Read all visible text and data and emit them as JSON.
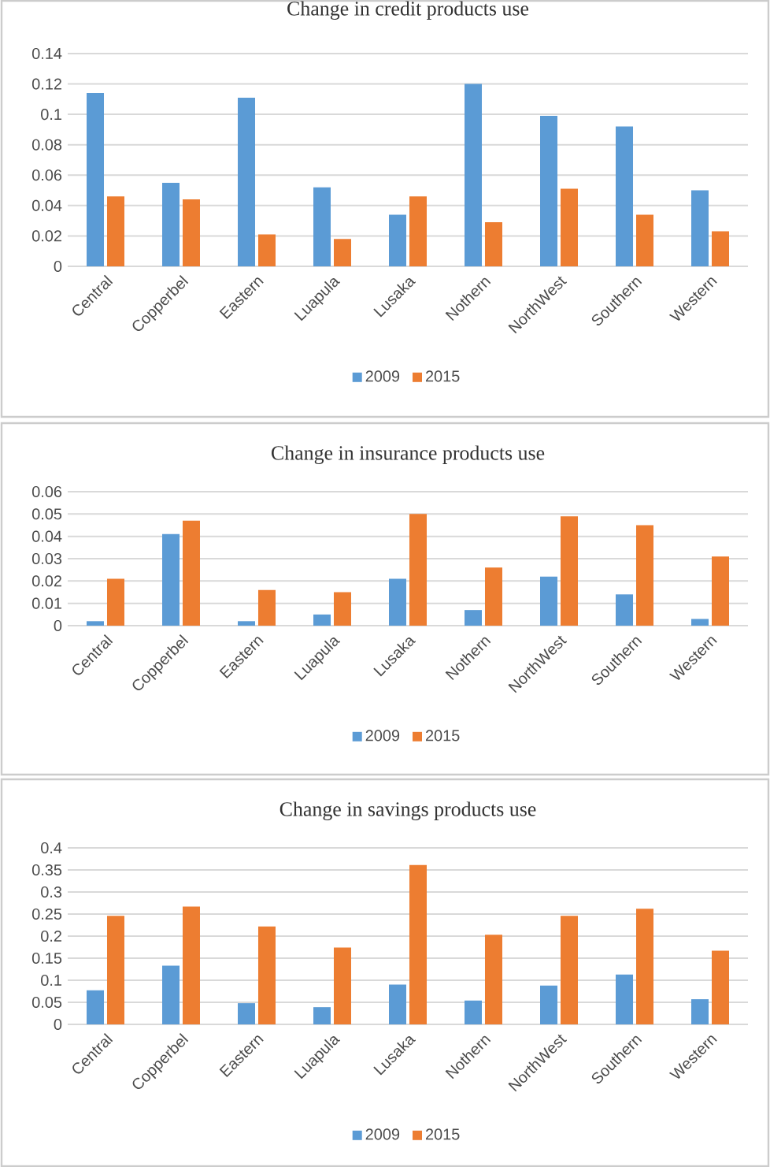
{
  "chart_data": [
    {
      "type": "bar",
      "title": "Change in credit products use",
      "categories": [
        "Central",
        "Copperbel",
        "Eastern",
        "Luapula",
        "Lusaka",
        "Nothern",
        "NorthWest",
        "Southern",
        "Western"
      ],
      "series": [
        {
          "name": "2009",
          "color": "#5b9bd5",
          "values": [
            0.114,
            0.055,
            0.111,
            0.052,
            0.034,
            0.12,
            0.099,
            0.092,
            0.05
          ]
        },
        {
          "name": "2015",
          "color": "#ed7d31",
          "values": [
            0.046,
            0.044,
            0.021,
            0.018,
            0.046,
            0.029,
            0.051,
            0.034,
            0.023
          ]
        }
      ],
      "ylim": [
        0,
        0.14
      ],
      "yticks": [
        0,
        0.02,
        0.04,
        0.06,
        0.08,
        0.1,
        0.12,
        0.14
      ],
      "grid": "y",
      "legend": "bottom"
    },
    {
      "type": "bar",
      "title": "Change in insurance products use",
      "categories": [
        "Central",
        "Copperbel",
        "Eastern",
        "Luapula",
        "Lusaka",
        "Nothern",
        "NorthWest",
        "Southern",
        "Western"
      ],
      "series": [
        {
          "name": "2009",
          "color": "#5b9bd5",
          "values": [
            0.002,
            0.041,
            0.002,
            0.005,
            0.021,
            0.007,
            0.022,
            0.014,
            0.003
          ]
        },
        {
          "name": "2015",
          "color": "#ed7d31",
          "values": [
            0.021,
            0.047,
            0.016,
            0.015,
            0.05,
            0.026,
            0.049,
            0.045,
            0.031
          ]
        }
      ],
      "ylim": [
        0,
        0.06
      ],
      "yticks": [
        0,
        0.01,
        0.02,
        0.03,
        0.04,
        0.05,
        0.06
      ],
      "grid": "y",
      "legend": "bottom"
    },
    {
      "type": "bar",
      "title": "Change in savings products use",
      "categories": [
        "Central",
        "Copperbel",
        "Eastern",
        "Luapula",
        "Lusaka",
        "Nothern",
        "NorthWest",
        "Southern",
        "Western"
      ],
      "series": [
        {
          "name": "2009",
          "color": "#5b9bd5",
          "values": [
            0.077,
            0.133,
            0.048,
            0.039,
            0.09,
            0.054,
            0.088,
            0.113,
            0.057
          ]
        },
        {
          "name": "2015",
          "color": "#ed7d31",
          "values": [
            0.246,
            0.267,
            0.222,
            0.174,
            0.361,
            0.203,
            0.246,
            0.262,
            0.167
          ]
        }
      ],
      "ylim": [
        0,
        0.4
      ],
      "yticks": [
        0,
        0.05,
        0.1,
        0.15,
        0.2,
        0.25,
        0.3,
        0.35,
        0.4
      ],
      "grid": "y",
      "legend": "bottom"
    }
  ]
}
